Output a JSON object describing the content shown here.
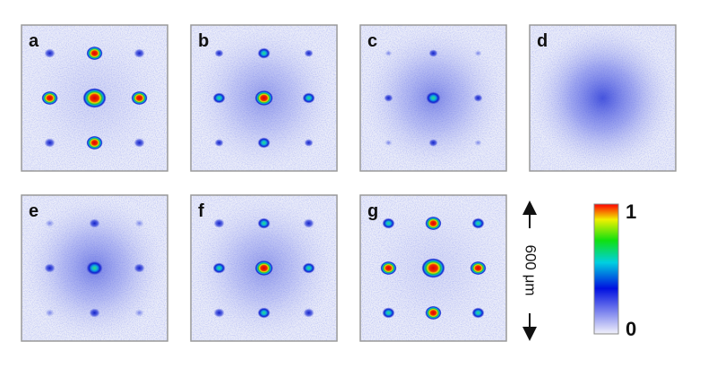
{
  "panels": [
    {
      "label": "a"
    },
    {
      "label": "b"
    },
    {
      "label": "c"
    },
    {
      "label": "d"
    },
    {
      "label": "e"
    },
    {
      "label": "f"
    },
    {
      "label": "g"
    }
  ],
  "scale_bar": {
    "label": "600 μm"
  },
  "colorbar": {
    "max_label": "1",
    "min_label": "0"
  }
}
